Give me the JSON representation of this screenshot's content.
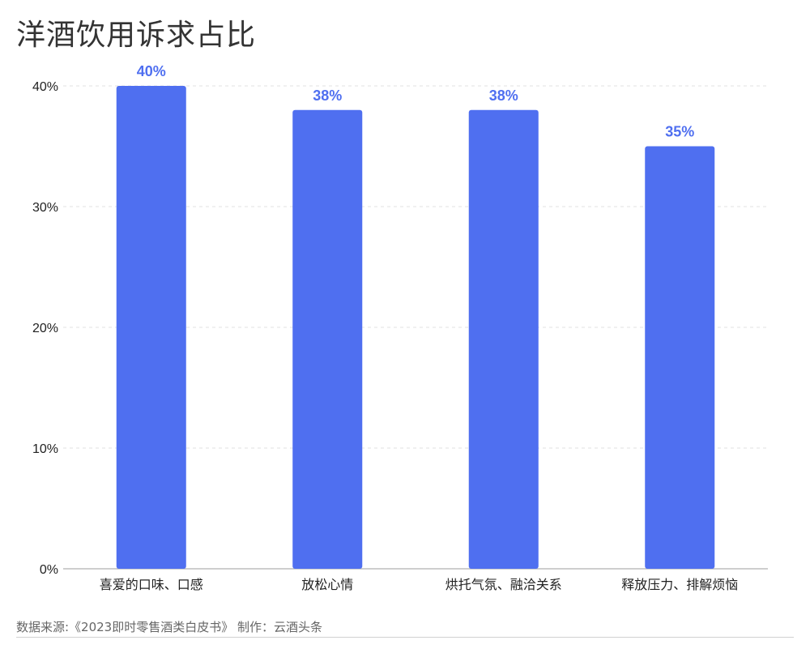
{
  "title": "洋酒饮用诉求占比",
  "footer": {
    "source": "数据来源:《2023即时零售酒类白皮书》 制作：云酒头条"
  },
  "colors": {
    "bar": "#4f6ff0",
    "value_label": "#4f6ff0",
    "grid": "#e2e2e2",
    "axis": "#bdbdbd",
    "tick_text": "#222222"
  },
  "chart_data": {
    "type": "bar",
    "title": "洋酒饮用诉求占比",
    "xlabel": "",
    "ylabel": "",
    "categories": [
      "喜爱的口味、口感",
      "放松心情",
      "烘托气氛、融洽关系",
      "释放压力、排解烦恼"
    ],
    "values": [
      40,
      38,
      38,
      35
    ],
    "value_labels": [
      "40%",
      "38%",
      "38%",
      "35%"
    ],
    "ylim": [
      0,
      40
    ],
    "yticks": [
      0,
      10,
      20,
      30,
      40
    ],
    "ytick_labels": [
      "0%",
      "10%",
      "20%",
      "30%",
      "40%"
    ],
    "grid": true
  }
}
